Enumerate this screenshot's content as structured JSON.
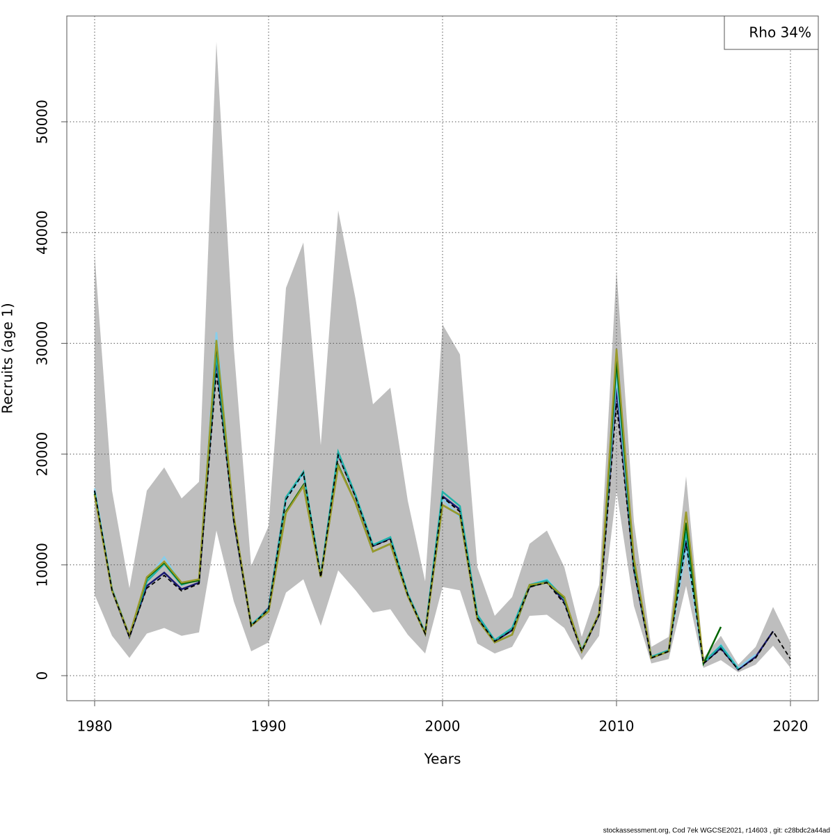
{
  "chart_data": {
    "type": "line",
    "x_label": "Years",
    "y_label": "Recruits (age 1)",
    "annotation": "Rho 34%",
    "footer": "stockassessment.org, Cod  7ek  WGCSE2021, r14603 , git: c28bdc2a44ad",
    "xlim": [
      1978.4,
      2021.6
    ],
    "ylim": [
      -2261,
      59548
    ],
    "xticks": [
      1980,
      1990,
      2000,
      2010,
      2020
    ],
    "yticks": [
      0,
      10000,
      20000,
      30000,
      40000,
      50000
    ],
    "grid": true,
    "x": [
      1980,
      1981,
      1982,
      1983,
      1984,
      1985,
      1986,
      1987,
      1988,
      1989,
      1990,
      1991,
      1992,
      1993,
      1994,
      1995,
      1996,
      1997,
      1998,
      1999,
      2000,
      2001,
      2002,
      2003,
      2004,
      2005,
      2006,
      2007,
      2008,
      2009,
      2010,
      2011,
      2012,
      2013,
      2014,
      2015,
      2016,
      2017,
      2018,
      2019,
      2020
    ],
    "band": {
      "color": "#bebebe",
      "upper": [
        38000,
        16700,
        7900,
        16700,
        18800,
        16000,
        17500,
        57200,
        29600,
        9900,
        13500,
        35000,
        39100,
        20800,
        42000,
        34000,
        24500,
        26000,
        15800,
        8500,
        31700,
        29000,
        9800,
        5400,
        7100,
        11900,
        13100,
        9800,
        3500,
        8200,
        36600,
        13900,
        2600,
        3500,
        18000,
        1600,
        3600,
        1000,
        2600,
        6200,
        3000
      ],
      "lower": [
        7300,
        3600,
        1600,
        3800,
        4300,
        3600,
        3900,
        13100,
        6700,
        2200,
        3000,
        7500,
        8700,
        4500,
        9500,
        7700,
        5700,
        6000,
        3700,
        2000,
        8000,
        7700,
        2900,
        2000,
        2600,
        5400,
        5500,
        4300,
        1400,
        3600,
        16700,
        6300,
        1100,
        1500,
        8100,
        700,
        1400,
        300,
        1000,
        2700,
        700
      ]
    },
    "series": [
      {
        "color": "#191970",
        "values": [
          16700,
          7700,
          3500,
          8100,
          9300,
          7800,
          8400,
          28500,
          14000,
          4500,
          6100,
          16100,
          18300,
          8900,
          20000,
          16200,
          11700,
          12400,
          7300,
          3800,
          16200,
          15000,
          5300,
          3100,
          4100,
          8000,
          8500,
          6700,
          2200,
          5500,
          26000,
          9600,
          1600,
          2200,
          12200,
          1100,
          2500,
          550,
          1700,
          4000,
          null
        ]
      },
      {
        "color": "#87ceeb",
        "values": [
          16900,
          7800,
          3600,
          8600,
          10700,
          8300,
          8700,
          31000,
          14300,
          4600,
          6000,
          15900,
          18200,
          9000,
          20100,
          16300,
          11800,
          12500,
          7400,
          3900,
          16000,
          14300,
          5500,
          3200,
          4300,
          8200,
          8700,
          6900,
          2300,
          5600,
          27000,
          9900,
          1700,
          2300,
          11500,
          1100,
          2800,
          700,
          1900,
          null,
          null
        ]
      },
      {
        "color": "#20b2aa",
        "values": [
          16600,
          7800,
          3600,
          8500,
          10100,
          8200,
          8700,
          29000,
          14200,
          4600,
          6000,
          16100,
          18400,
          9000,
          20200,
          16300,
          11800,
          12500,
          7400,
          3900,
          16600,
          15300,
          5500,
          3200,
          4300,
          8200,
          8600,
          7000,
          2300,
          5600,
          28000,
          10000,
          1700,
          2300,
          13000,
          1200,
          2700,
          600,
          null,
          null,
          null
        ]
      },
      {
        "color": "#006400",
        "values": [
          16400,
          7700,
          3600,
          8800,
          10200,
          8300,
          8600,
          30000,
          14300,
          4500,
          5800,
          14800,
          17200,
          8900,
          19000,
          15600,
          11200,
          11900,
          7200,
          3800,
          15400,
          14500,
          5100,
          3000,
          3700,
          8100,
          8400,
          7000,
          2200,
          5600,
          28500,
          10400,
          1600,
          2200,
          13800,
          1100,
          4400,
          null,
          null,
          null,
          null
        ]
      },
      {
        "color": "#9a9a2a",
        "values": [
          16300,
          7700,
          3600,
          8900,
          10300,
          8400,
          8700,
          30300,
          14400,
          4500,
          5800,
          14700,
          17100,
          8900,
          18900,
          15600,
          11200,
          11900,
          7200,
          3800,
          15400,
          14500,
          5100,
          3000,
          3700,
          8200,
          8400,
          7100,
          2200,
          5600,
          29500,
          10600,
          1600,
          2200,
          14800,
          1200,
          null,
          null,
          null,
          null,
          null
        ]
      },
      {
        "color": "#000000",
        "dashed": true,
        "values": [
          16700,
          7700,
          3500,
          7900,
          9050,
          7650,
          8300,
          27400,
          14000,
          4500,
          6000,
          15900,
          18300,
          8900,
          19900,
          16100,
          11700,
          12300,
          7300,
          3800,
          16100,
          14800,
          5200,
          3100,
          4100,
          8000,
          8400,
          6500,
          2200,
          5500,
          24600,
          9500,
          1600,
          2200,
          12000,
          1100,
          2400,
          550,
          1600,
          4000,
          1500
        ]
      }
    ]
  }
}
